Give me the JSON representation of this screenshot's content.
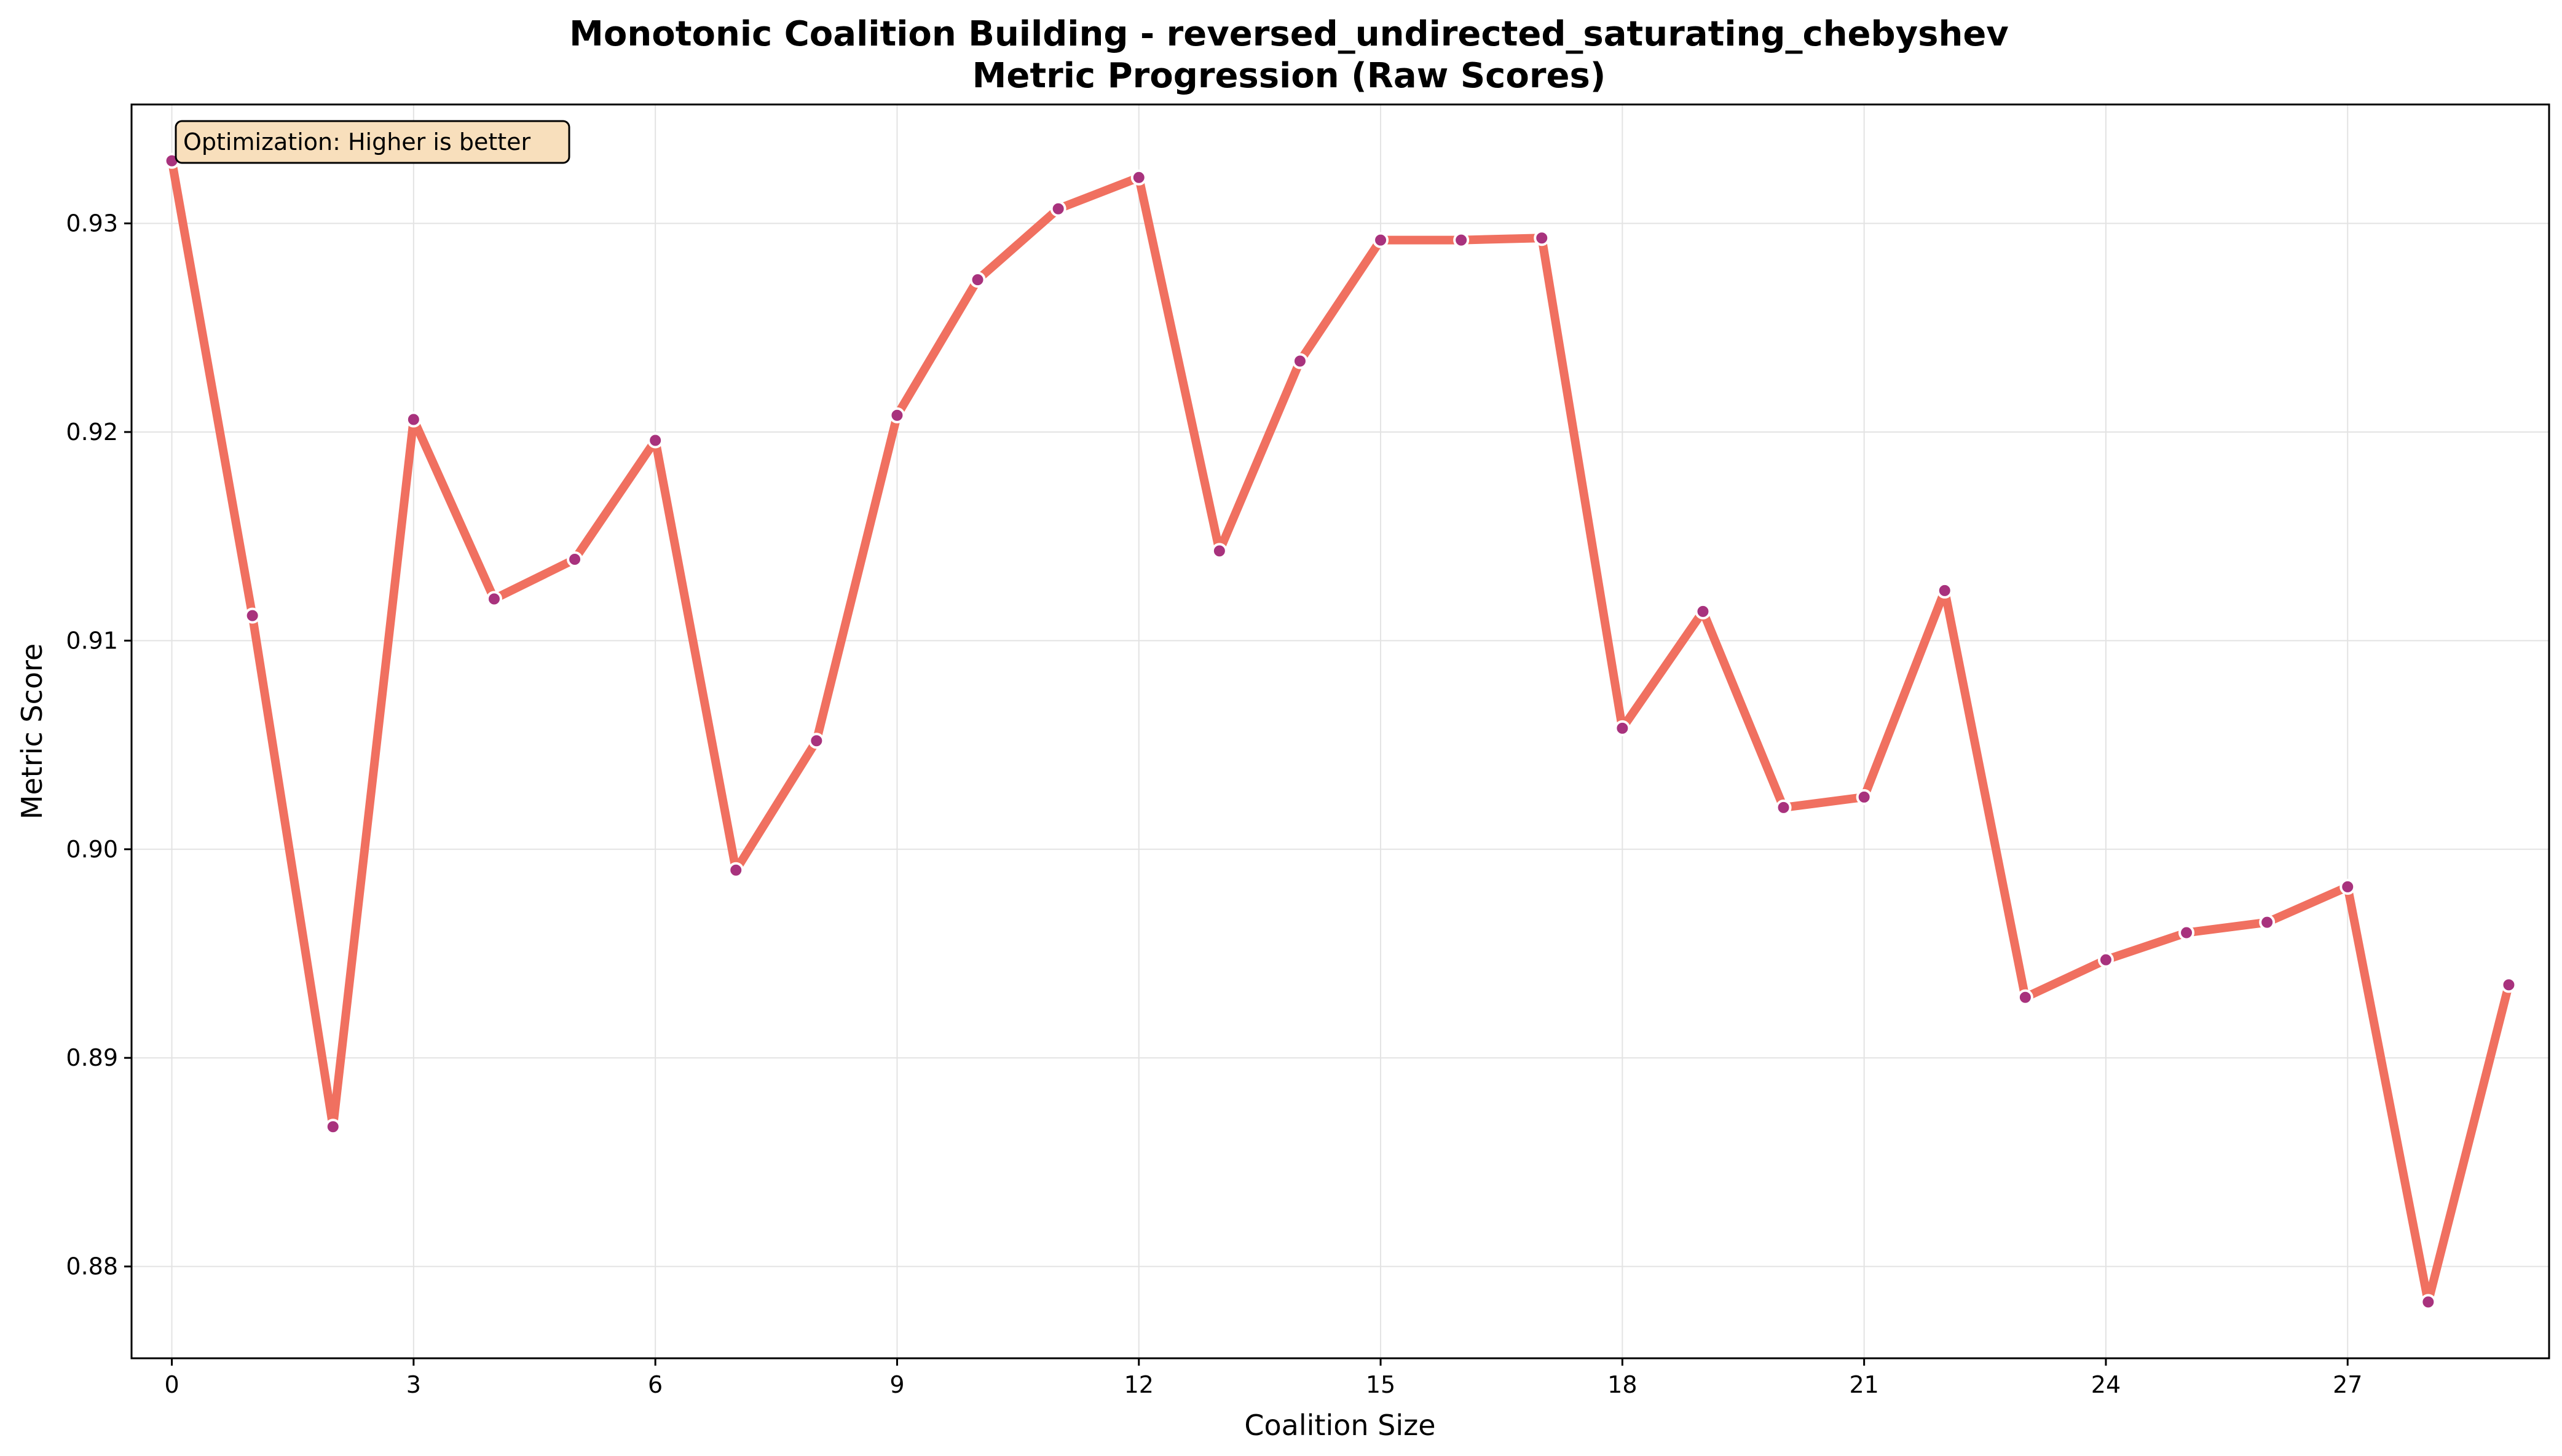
{
  "chart_data": {
    "type": "line",
    "title": "Monotonic Coalition Building - reversed_undirected_saturating_chebyshev",
    "subtitle": "Metric Progression (Raw Scores)",
    "xlabel": "Coalition Size",
    "ylabel": "Metric Score",
    "annotation": "Optimization: Higher is better",
    "xlim": [
      -0.5,
      29.5
    ],
    "ylim": [
      0.8756,
      0.9357
    ],
    "xticks": [
      0,
      3,
      6,
      9,
      12,
      15,
      18,
      21,
      24,
      27
    ],
    "yticks": [
      0.88,
      0.89,
      0.9,
      0.91,
      0.92,
      0.93
    ],
    "ytick_labels": [
      "0.88",
      "0.89",
      "0.90",
      "0.91",
      "0.92",
      "0.93"
    ],
    "grid": true,
    "line_color": "#f07060",
    "marker_color": "#a8327d",
    "annotation_bg": "#f8dfbc",
    "x": [
      0,
      1,
      2,
      3,
      4,
      5,
      6,
      7,
      8,
      9,
      10,
      11,
      12,
      13,
      14,
      15,
      16,
      17,
      18,
      19,
      20,
      21,
      22,
      23,
      24,
      25,
      26,
      27,
      28,
      29
    ],
    "values": [
      0.933,
      0.9112,
      0.8867,
      0.9206,
      0.912,
      0.9139,
      0.9196,
      0.899,
      0.9052,
      0.9208,
      0.9273,
      0.9307,
      0.9322,
      0.9143,
      0.9234,
      0.9292,
      0.9292,
      0.9293,
      0.9058,
      0.9114,
      0.902,
      0.9025,
      0.9124,
      0.8929,
      0.8947,
      0.896,
      0.8965,
      0.8982,
      0.8783,
      0.8935
    ]
  }
}
